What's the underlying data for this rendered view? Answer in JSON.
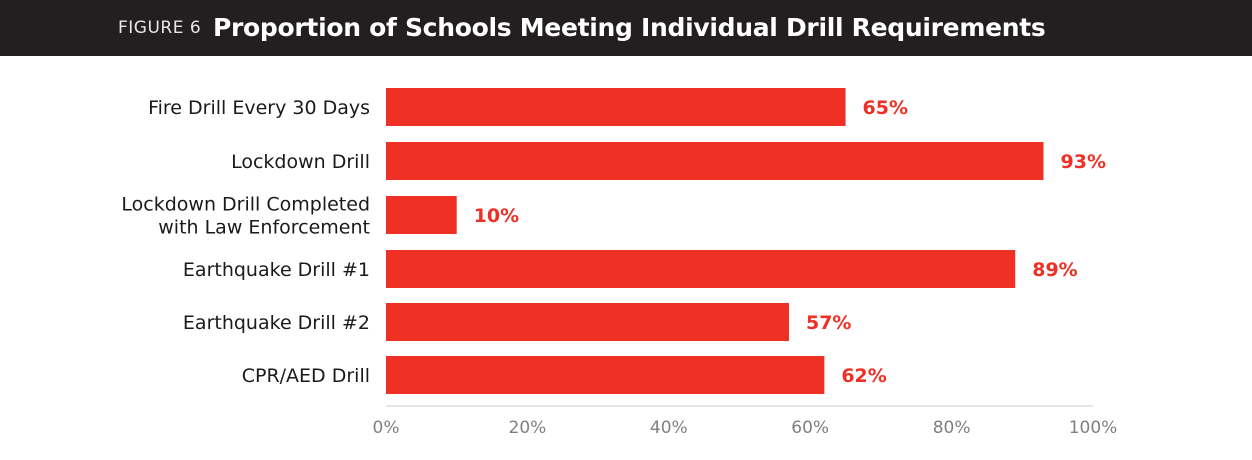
{
  "figure": {
    "label": "FIGURE 6",
    "title": "Proportion of Schools Meeting Individual Drill Requirements"
  },
  "colors": {
    "bar": "#ee3124",
    "header_bg": "#231f20",
    "value_text": "#ee3124"
  },
  "chart_data": {
    "type": "bar",
    "orientation": "horizontal",
    "title": "Proportion of Schools Meeting Individual Drill Requirements",
    "categories": [
      [
        "Fire Drill Every 30 Days"
      ],
      [
        "Lockdown Drill"
      ],
      [
        "Lockdown Drill Completed",
        "with Law Enforcement"
      ],
      [
        "Earthquake Drill #1"
      ],
      [
        "Earthquake Drill #2"
      ],
      [
        "CPR/AED Drill"
      ]
    ],
    "values": [
      65,
      93,
      10,
      89,
      57,
      62
    ],
    "value_labels": [
      "65%",
      "93%",
      "10%",
      "89%",
      "57%",
      "62%"
    ],
    "xlim": [
      0,
      100
    ],
    "x_ticks": [
      "0%",
      "20%",
      "40%",
      "60%",
      "80%",
      "100%"
    ],
    "x_tick_values": [
      0,
      20,
      40,
      60,
      80,
      100
    ],
    "xlabel": "",
    "ylabel": "",
    "grid": false
  }
}
